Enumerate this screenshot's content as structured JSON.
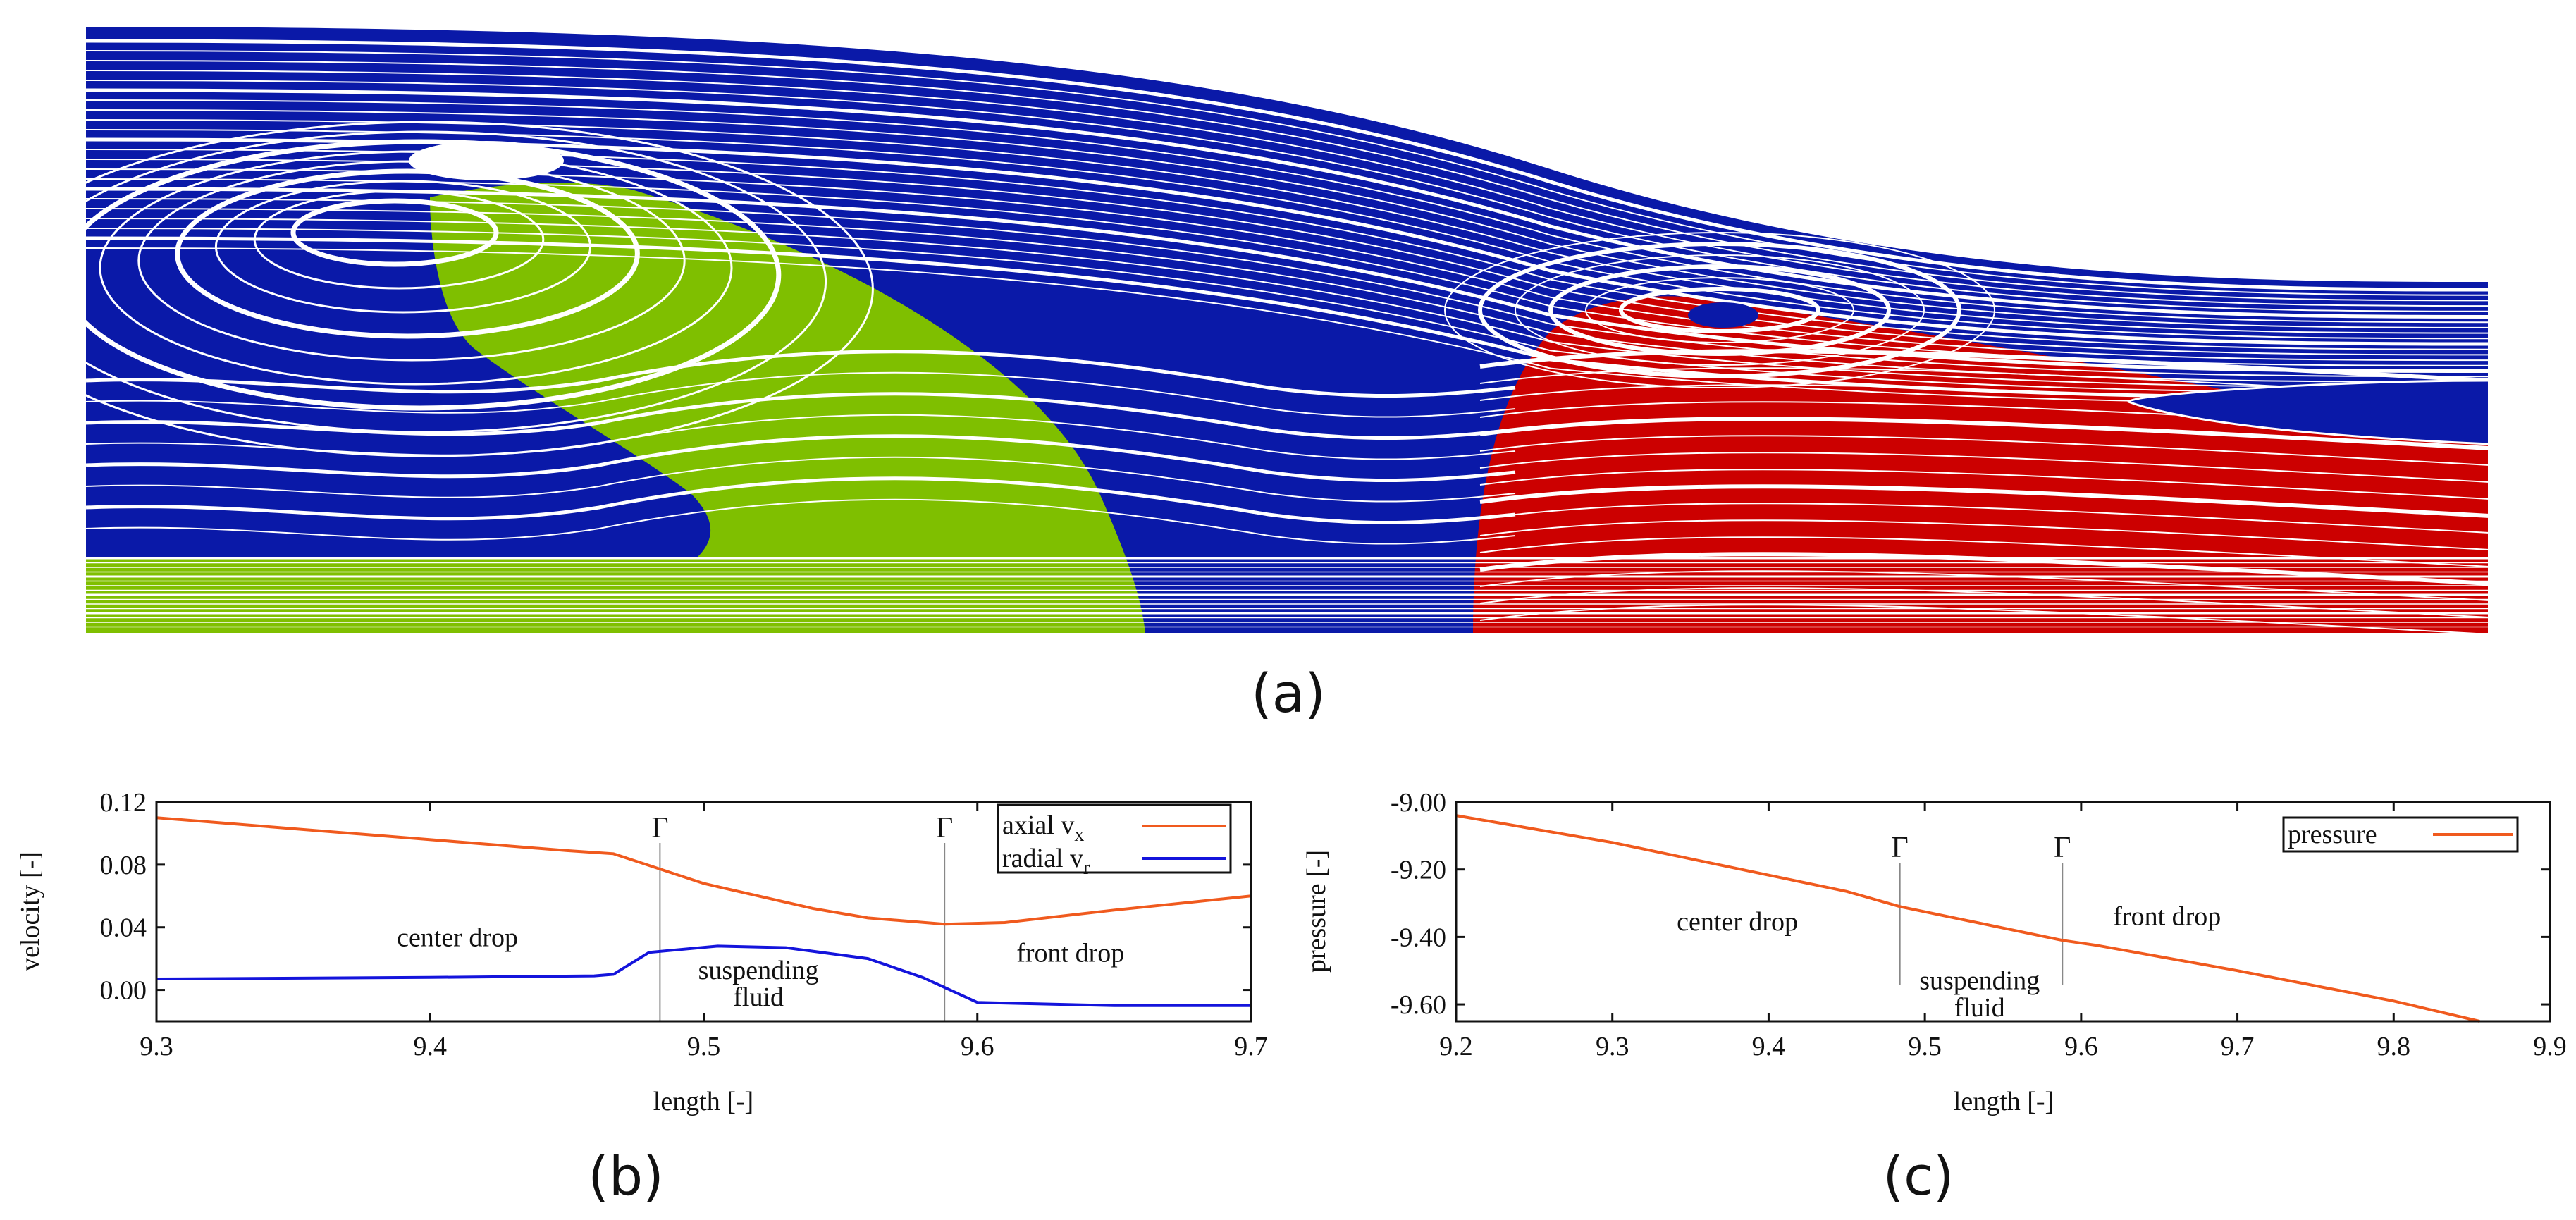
{
  "captions": {
    "a": "(a)",
    "b": "(b)",
    "c": "(c)"
  },
  "colors": {
    "blue_field": "#0a19a8",
    "green_drop": "#7fbf00",
    "red_drop": "#cc0000",
    "axial_line": "#f05a1e",
    "radial_line": "#1414dc",
    "pressure_line": "#f05a1e"
  },
  "panel_a": {
    "description_legend": [
      "center drop (green)",
      "suspending fluid (blue)",
      "front drop (red)"
    ]
  },
  "chart_data": [
    {
      "id": "b",
      "type": "line",
      "xlabel": "length [-]",
      "ylabel": "velocity [-]",
      "xlim": [
        9.3,
        9.7
      ],
      "ylim": [
        -0.02,
        0.12
      ],
      "xticks": [
        9.3,
        9.4,
        9.5,
        9.6,
        9.7
      ],
      "xtick_labels": [
        "9.3",
        "9.4",
        "9.5",
        "9.6",
        "9.7"
      ],
      "yticks": [
        0.0,
        0.04,
        0.08,
        0.12
      ],
      "ytick_labels": [
        "0.00",
        "0.04",
        "0.08",
        "0.12"
      ],
      "series": [
        {
          "name": "axial",
          "sub": "x",
          "legend_label": "axial v",
          "color": "#f05a1e",
          "x": [
            9.3,
            9.45,
            9.467,
            9.5,
            9.54,
            9.56,
            9.588,
            9.61,
            9.65,
            9.7
          ],
          "y": [
            0.11,
            0.089,
            0.087,
            0.068,
            0.052,
            0.046,
            0.042,
            0.043,
            0.051,
            0.06
          ]
        },
        {
          "name": "radial",
          "sub": "r",
          "legend_label": "radial v",
          "color": "#1414dc",
          "x": [
            9.3,
            9.4,
            9.46,
            9.467,
            9.48,
            9.505,
            9.53,
            9.56,
            9.58,
            9.6,
            9.65,
            9.7
          ],
          "y": [
            0.007,
            0.008,
            0.009,
            0.01,
            0.024,
            0.028,
            0.027,
            0.02,
            0.008,
            -0.008,
            -0.01,
            -0.01
          ]
        }
      ],
      "interfaces": [
        {
          "x": 9.484,
          "label": "Γ"
        },
        {
          "x": 9.588,
          "label": "Γ"
        }
      ],
      "annotations": [
        {
          "text": "center drop",
          "x": 9.41,
          "y": 0.028
        },
        {
          "text": "suspending",
          "x": 9.52,
          "y": 0.007
        },
        {
          "text": "fluid",
          "x": 9.52,
          "y": -0.01
        },
        {
          "text": "front drop",
          "x": 9.634,
          "y": 0.018
        }
      ],
      "legend": "top-right"
    },
    {
      "id": "c",
      "type": "line",
      "xlabel": "length [-]",
      "ylabel": "pressure [-]",
      "xlim": [
        9.2,
        9.9
      ],
      "ylim": [
        -9.65,
        -9.0
      ],
      "xticks": [
        9.2,
        9.3,
        9.4,
        9.5,
        9.6,
        9.7,
        9.8,
        9.9
      ],
      "xtick_labels": [
        "9.2",
        "9.3",
        "9.4",
        "9.5",
        "9.6",
        "9.7",
        "9.8",
        "9.9"
      ],
      "yticks": [
        -9.0,
        -9.2,
        -9.4,
        -9.6
      ],
      "ytick_labels": [
        "-9.00",
        "-9.20",
        "-9.40",
        "-9.60"
      ],
      "series": [
        {
          "name": "pressure",
          "legend_label": "pressure",
          "color": "#f05a1e",
          "x": [
            9.2,
            9.3,
            9.45,
            9.484,
            9.588,
            9.61,
            9.7,
            9.8,
            9.855
          ],
          "y": [
            -9.04,
            -9.12,
            -9.265,
            -9.31,
            -9.41,
            -9.425,
            -9.5,
            -9.59,
            -9.65
          ]
        }
      ],
      "interfaces": [
        {
          "x": 9.484,
          "label": "Γ"
        },
        {
          "x": 9.588,
          "label": "Γ"
        }
      ],
      "annotations": [
        {
          "text": "center drop",
          "x": 9.38,
          "y": -9.38
        },
        {
          "text": "suspending",
          "x": 9.535,
          "y": -9.555
        },
        {
          "text": "fluid",
          "x": 9.535,
          "y": -9.635
        },
        {
          "text": "front drop",
          "x": 9.655,
          "y": -9.365
        }
      ],
      "legend": "top-right"
    }
  ]
}
